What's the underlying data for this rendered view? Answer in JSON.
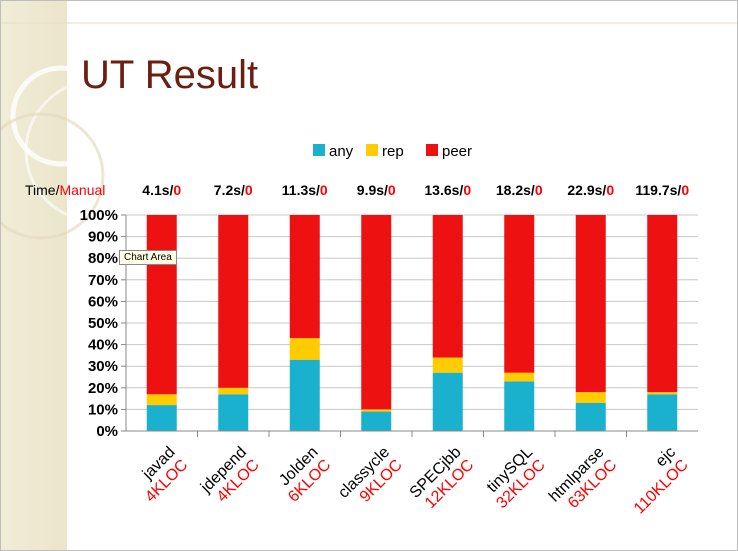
{
  "slide": {
    "title": "UT Result",
    "time_label_prefix": "Time/",
    "time_label_suffix": "Manual",
    "tooltip": "Chart Area"
  },
  "colors": {
    "any": "#1ab1cf",
    "rep": "#ffcc00",
    "peer": "#ee1111",
    "title": "#6b1e12",
    "highlight": "#ff0000"
  },
  "chart_data": {
    "type": "bar",
    "stacked": "percent",
    "categories": [
      "javad",
      "jdepend",
      "Jolden",
      "classycle",
      "SPECjbb",
      "tinySQL",
      "htmlparse",
      "ejc"
    ],
    "kloc": [
      "4KLOC",
      "4KLOC",
      "6KLOC",
      "9KLOC",
      "12KLOC",
      "32KLOC",
      "63KLOC",
      "110KLOC"
    ],
    "times": [
      "4.1s/",
      "7.2s/",
      "11.3s/",
      "9.9s/",
      "13.6s/",
      "18.2s/",
      "22.9s/",
      "119.7s/"
    ],
    "manual": [
      "0",
      "0",
      "0",
      "0",
      "0",
      "0",
      "0",
      "0"
    ],
    "series": [
      {
        "name": "any",
        "values": [
          12,
          17,
          33,
          9,
          27,
          23,
          13,
          17
        ]
      },
      {
        "name": "rep",
        "values": [
          5,
          3,
          10,
          1,
          7,
          4,
          5,
          1
        ]
      },
      {
        "name": "peer",
        "values": [
          83,
          80,
          57,
          90,
          66,
          73,
          82,
          82
        ]
      }
    ],
    "ylim": [
      0,
      100
    ],
    "yticks": [
      "0%",
      "10%",
      "20%",
      "30%",
      "40%",
      "50%",
      "60%",
      "70%",
      "80%",
      "90%",
      "100%"
    ],
    "grid": true,
    "legend_position": "top"
  }
}
